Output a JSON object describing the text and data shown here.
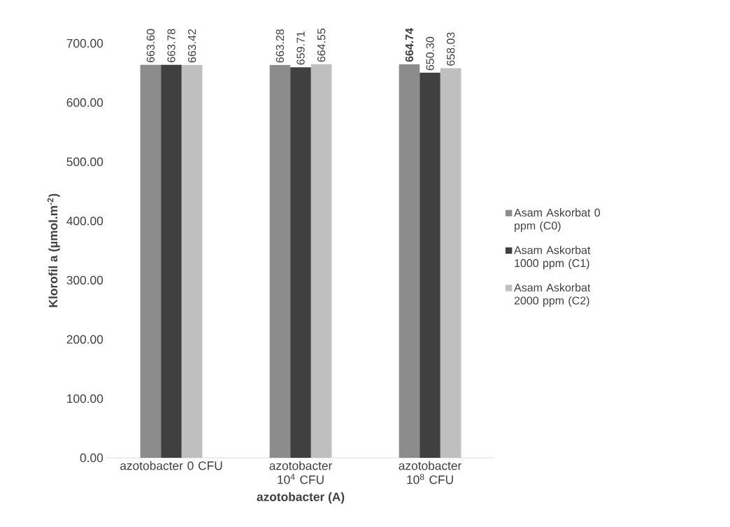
{
  "chart_data": {
    "type": "bar",
    "xlabel": "azotobacter (A)",
    "ylabel": "Klorofil a (µmol.m$^{-2}$)",
    "categories": [
      "azotobacter 0 CFU",
      "azotobacter 10$^{4}$ CFU",
      "azotobacter 10$^{8}$ CFU"
    ],
    "series": [
      {
        "name": "Asam Askorbat 0 ppm (C0)",
        "color": "#8c8c8c",
        "values": [
          663.6,
          663.28,
          664.74
        ],
        "value_labels": [
          "663.60",
          "663.28",
          "**664.74**"
        ]
      },
      {
        "name": "Asam Askorbat 1000 ppm (C1)",
        "color": "#404040",
        "values": [
          663.78,
          659.71,
          650.3
        ],
        "value_labels": [
          "663.78",
          "659.71",
          "650.30"
        ]
      },
      {
        "name": "Asam Askorbat 2000 ppm (C2)",
        "color": "#bfbfbf",
        "values": [
          663.42,
          664.55,
          658.03
        ],
        "value_labels": [
          "663.42",
          "664.55",
          "658.03"
        ]
      }
    ],
    "ylim": [
      0,
      700
    ],
    "yticks": [
      {
        "value": 0,
        "label": "0.00"
      },
      {
        "value": 100,
        "label": "100.00"
      },
      {
        "value": 200,
        "label": "200.00"
      },
      {
        "value": 300,
        "label": "300.00"
      },
      {
        "value": 400,
        "label": "400.00"
      },
      {
        "value": 500,
        "label": "500.00"
      },
      {
        "value": 600,
        "label": "600.00"
      },
      {
        "value": 700,
        "label": "700.00"
      }
    ],
    "legend": "right",
    "grid": false
  }
}
